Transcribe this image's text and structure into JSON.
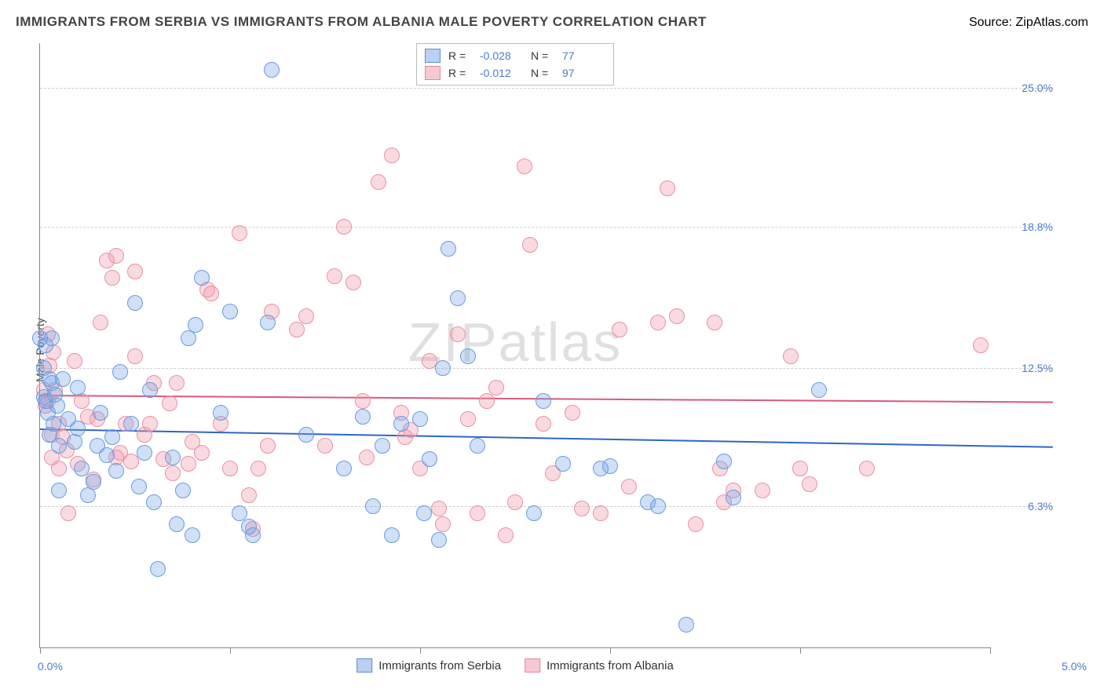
{
  "title": "IMMIGRANTS FROM SERBIA VS IMMIGRANTS FROM ALBANIA MALE POVERTY CORRELATION CHART",
  "source_label": "Source:",
  "source_name": "ZipAtlas.com",
  "ylabel": "Male Poverty",
  "watermark": "ZIPatlas",
  "chart": {
    "type": "scatter",
    "xlim": [
      0.0,
      5.0
    ],
    "ylim": [
      0.0,
      27.0
    ],
    "xtick_labels": [
      "0.0%",
      "5.0%"
    ],
    "xtick_positions": [
      0.0,
      5.0
    ],
    "xtick_minor": [
      0.0,
      1.0,
      2.0,
      3.0,
      4.0,
      5.0
    ],
    "ytick_positions": [
      6.3,
      12.5,
      18.8,
      25.0
    ],
    "ytick_labels": [
      "6.3%",
      "12.5%",
      "18.8%",
      "25.0%"
    ],
    "grid_color": "#d0d0d0",
    "background_color": "#ffffff",
    "marker_radius": 9,
    "marker_border_width": 1.5,
    "series": [
      {
        "name": "Immigrants from Serbia",
        "color_fill": "rgba(120,165,230,0.35)",
        "color_stroke": "#6a9be0",
        "swatch_fill": "#b9d0f0",
        "swatch_border": "#5f8fd4",
        "R": "-0.028",
        "N": "77",
        "trend": {
          "y_start": 9.8,
          "y_end": 9.0,
          "color": "#2e66c4"
        },
        "points": [
          [
            0.02,
            11.2
          ],
          [
            0.02,
            12.5
          ],
          [
            0.03,
            11.0
          ],
          [
            0.04,
            10.5
          ],
          [
            0.05,
            12.0
          ],
          [
            0.05,
            9.5
          ],
          [
            0.06,
            11.8
          ],
          [
            0.03,
            13.5
          ],
          [
            0.06,
            13.8
          ],
          [
            0.07,
            10.0
          ],
          [
            0.08,
            11.3
          ],
          [
            0.09,
            10.8
          ],
          [
            0.1,
            9.0
          ],
          [
            0.1,
            7.0
          ],
          [
            0.12,
            12.0
          ],
          [
            0.15,
            10.2
          ],
          [
            0.18,
            9.2
          ],
          [
            0.2,
            9.8
          ],
          [
            0.2,
            11.6
          ],
          [
            0.22,
            8.0
          ],
          [
            0.25,
            6.8
          ],
          [
            0.28,
            7.4
          ],
          [
            0.3,
            9.0
          ],
          [
            0.32,
            10.5
          ],
          [
            0.35,
            8.6
          ],
          [
            0.38,
            9.4
          ],
          [
            0.4,
            7.9
          ],
          [
            0.42,
            12.3
          ],
          [
            0.48,
            10.0
          ],
          [
            0.5,
            15.4
          ],
          [
            0.52,
            7.2
          ],
          [
            0.55,
            8.7
          ],
          [
            0.58,
            11.5
          ],
          [
            0.6,
            6.5
          ],
          [
            0.62,
            3.5
          ],
          [
            0.7,
            8.5
          ],
          [
            0.72,
            5.5
          ],
          [
            0.75,
            7.0
          ],
          [
            0.78,
            13.8
          ],
          [
            0.8,
            5.0
          ],
          [
            0.82,
            14.4
          ],
          [
            0.85,
            16.5
          ],
          [
            0.95,
            10.5
          ],
          [
            1.0,
            15.0
          ],
          [
            1.05,
            6.0
          ],
          [
            1.1,
            5.4
          ],
          [
            1.12,
            5.0
          ],
          [
            1.2,
            14.5
          ],
          [
            1.22,
            25.8
          ],
          [
            1.4,
            9.5
          ],
          [
            1.6,
            8.0
          ],
          [
            1.7,
            10.3
          ],
          [
            1.75,
            6.3
          ],
          [
            1.8,
            9.0
          ],
          [
            1.85,
            5.0
          ],
          [
            1.9,
            10.0
          ],
          [
            2.0,
            10.2
          ],
          [
            2.02,
            6.0
          ],
          [
            2.05,
            8.4
          ],
          [
            2.1,
            4.8
          ],
          [
            2.12,
            12.5
          ],
          [
            2.15,
            17.8
          ],
          [
            2.2,
            15.6
          ],
          [
            2.25,
            13.0
          ],
          [
            2.3,
            9.0
          ],
          [
            2.6,
            6.0
          ],
          [
            2.65,
            11.0
          ],
          [
            2.75,
            8.2
          ],
          [
            2.95,
            8.0
          ],
          [
            3.0,
            8.1
          ],
          [
            3.2,
            6.5
          ],
          [
            3.25,
            6.3
          ],
          [
            3.4,
            1.0
          ],
          [
            3.6,
            8.3
          ],
          [
            3.65,
            6.7
          ],
          [
            4.1,
            11.5
          ],
          [
            0.0,
            13.8
          ]
        ]
      },
      {
        "name": "Immigrants from Albania",
        "color_fill": "rgba(240,150,170,0.35)",
        "color_stroke": "#e890a5",
        "swatch_fill": "#f6c8d4",
        "swatch_border": "#e28aa0",
        "R": "-0.012",
        "N": "97",
        "trend": {
          "y_start": 11.3,
          "y_end": 11.0,
          "color": "#d85a7a"
        },
        "points": [
          [
            0.02,
            11.5
          ],
          [
            0.03,
            10.8
          ],
          [
            0.04,
            11.0
          ],
          [
            0.04,
            14.0
          ],
          [
            0.05,
            12.6
          ],
          [
            0.06,
            8.5
          ],
          [
            0.06,
            9.5
          ],
          [
            0.07,
            13.2
          ],
          [
            0.08,
            11.5
          ],
          [
            0.1,
            10.0
          ],
          [
            0.1,
            8.0
          ],
          [
            0.12,
            9.4
          ],
          [
            0.14,
            8.8
          ],
          [
            0.15,
            6.0
          ],
          [
            0.18,
            12.8
          ],
          [
            0.2,
            8.2
          ],
          [
            0.22,
            11.0
          ],
          [
            0.25,
            10.3
          ],
          [
            0.28,
            7.5
          ],
          [
            0.3,
            10.2
          ],
          [
            0.32,
            14.5
          ],
          [
            0.35,
            17.3
          ],
          [
            0.38,
            16.5
          ],
          [
            0.4,
            17.5
          ],
          [
            0.42,
            8.7
          ],
          [
            0.45,
            10.0
          ],
          [
            0.48,
            8.3
          ],
          [
            0.5,
            13.0
          ],
          [
            0.55,
            9.5
          ],
          [
            0.58,
            10.0
          ],
          [
            0.6,
            11.8
          ],
          [
            0.65,
            8.4
          ],
          [
            0.68,
            10.9
          ],
          [
            0.7,
            7.8
          ],
          [
            0.72,
            11.8
          ],
          [
            0.78,
            8.2
          ],
          [
            0.8,
            9.2
          ],
          [
            0.85,
            8.7
          ],
          [
            0.9,
            15.8
          ],
          [
            0.95,
            10.0
          ],
          [
            1.0,
            8.0
          ],
          [
            1.05,
            18.5
          ],
          [
            1.1,
            6.8
          ],
          [
            1.12,
            5.3
          ],
          [
            1.15,
            8.0
          ],
          [
            1.2,
            9.0
          ],
          [
            1.22,
            15.0
          ],
          [
            1.35,
            14.2
          ],
          [
            1.4,
            14.8
          ],
          [
            1.5,
            9.0
          ],
          [
            1.55,
            16.6
          ],
          [
            1.6,
            18.8
          ],
          [
            1.65,
            16.3
          ],
          [
            1.7,
            11.0
          ],
          [
            1.72,
            8.5
          ],
          [
            1.78,
            20.8
          ],
          [
            1.85,
            22.0
          ],
          [
            1.9,
            10.5
          ],
          [
            1.92,
            9.4
          ],
          [
            1.95,
            9.7
          ],
          [
            2.0,
            8.0
          ],
          [
            2.05,
            12.8
          ],
          [
            2.1,
            6.2
          ],
          [
            2.12,
            5.5
          ],
          [
            2.2,
            14.0
          ],
          [
            2.25,
            10.2
          ],
          [
            2.3,
            6.0
          ],
          [
            2.35,
            11.0
          ],
          [
            2.4,
            11.6
          ],
          [
            2.45,
            5.0
          ],
          [
            2.5,
            6.5
          ],
          [
            2.55,
            21.5
          ],
          [
            2.58,
            18.0
          ],
          [
            2.65,
            10.0
          ],
          [
            2.7,
            7.8
          ],
          [
            2.8,
            10.5
          ],
          [
            2.85,
            6.2
          ],
          [
            2.95,
            6.0
          ],
          [
            3.05,
            14.2
          ],
          [
            3.1,
            7.2
          ],
          [
            3.25,
            14.5
          ],
          [
            3.3,
            20.5
          ],
          [
            3.35,
            14.8
          ],
          [
            3.45,
            5.5
          ],
          [
            3.55,
            14.5
          ],
          [
            3.58,
            8.0
          ],
          [
            3.6,
            6.5
          ],
          [
            3.65,
            7.0
          ],
          [
            3.8,
            7.0
          ],
          [
            3.95,
            13.0
          ],
          [
            4.0,
            8.0
          ],
          [
            4.05,
            7.3
          ],
          [
            4.35,
            8.0
          ],
          [
            4.95,
            13.5
          ],
          [
            0.4,
            8.5
          ],
          [
            0.5,
            16.8
          ],
          [
            0.88,
            16.0
          ]
        ]
      }
    ],
    "legend_labels": {
      "R": "R =",
      "N": "N ="
    }
  }
}
